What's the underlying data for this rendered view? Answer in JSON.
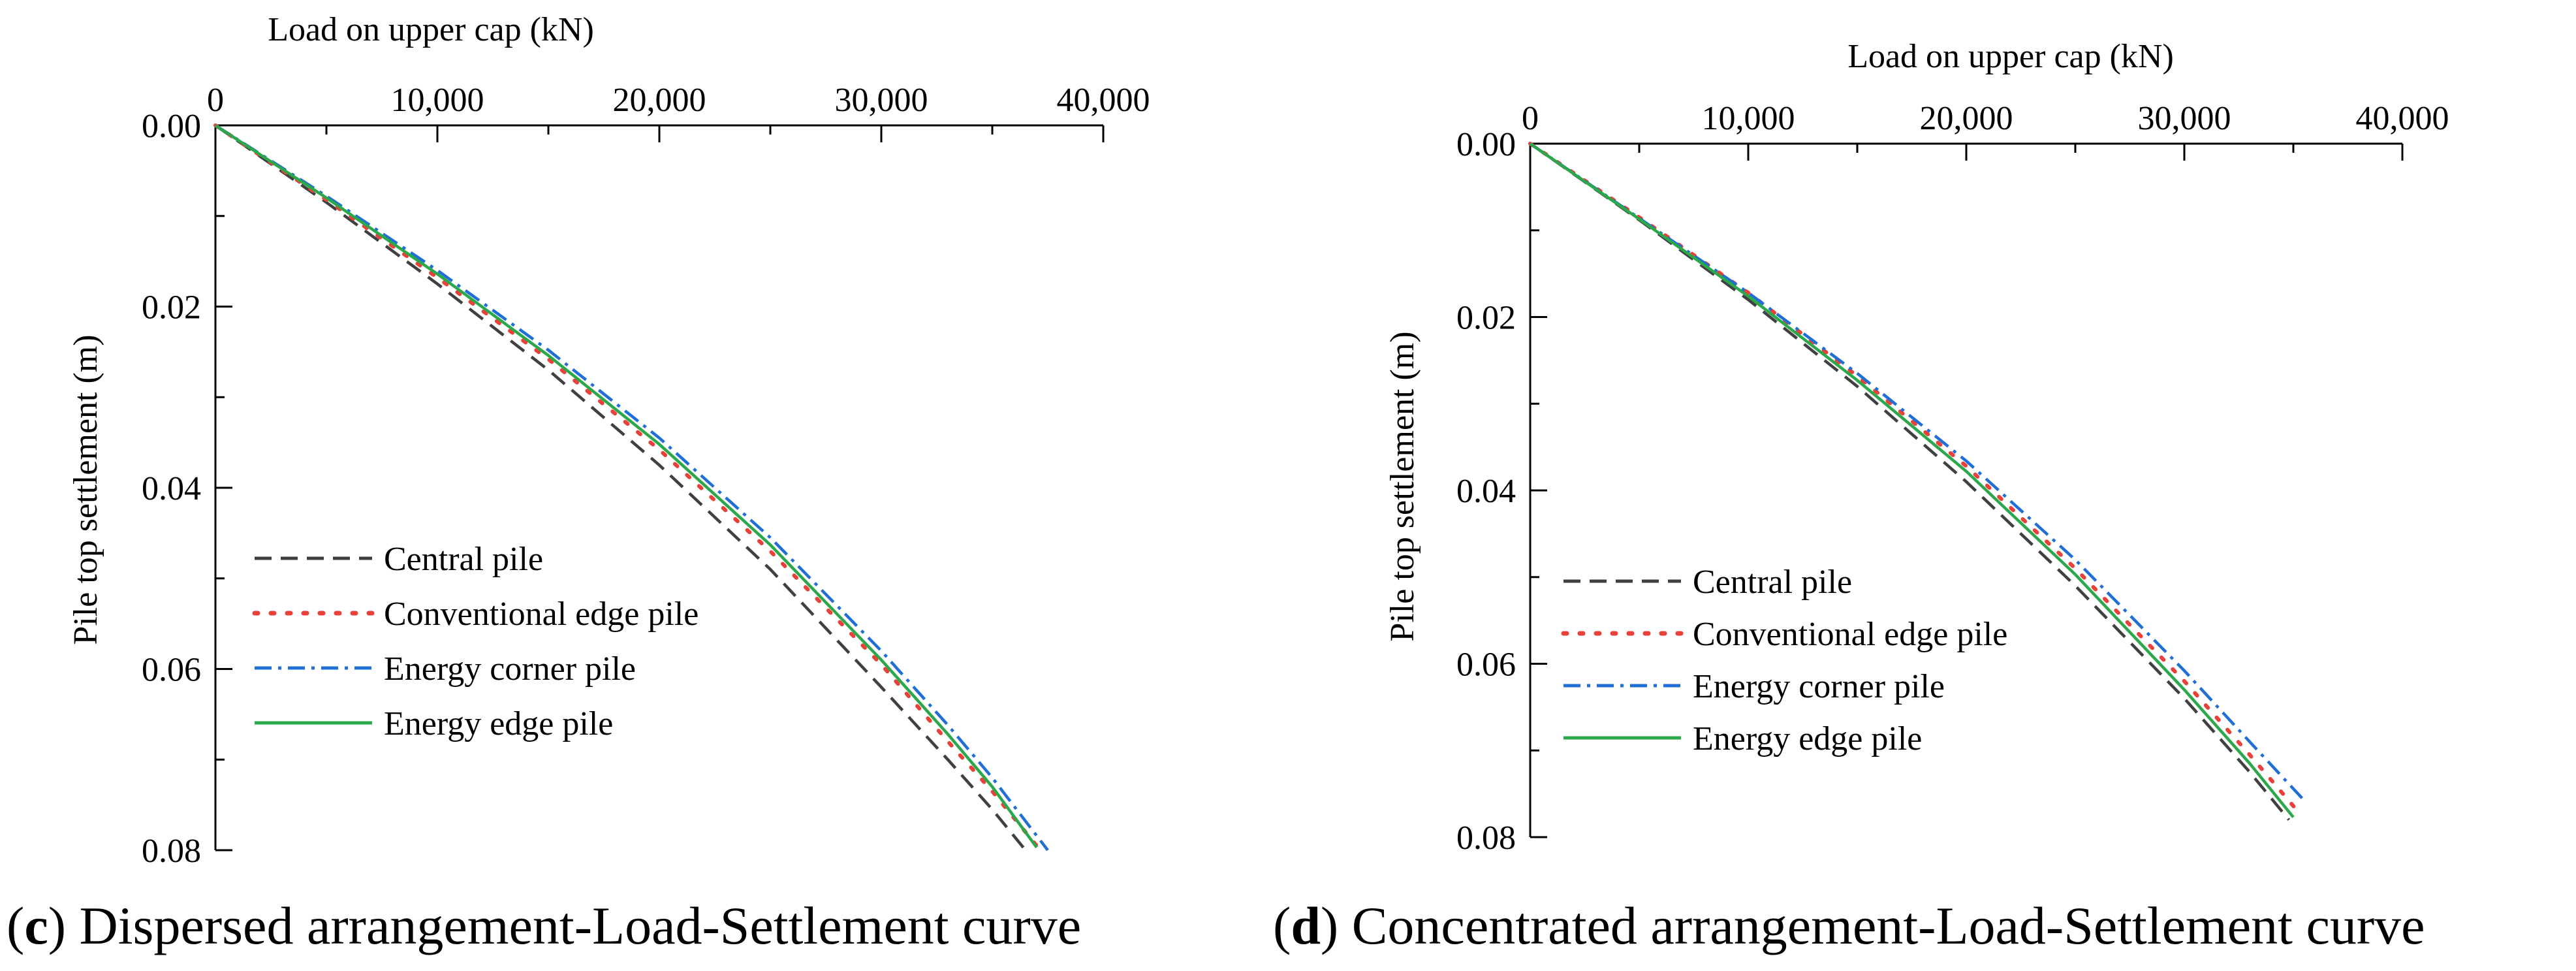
{
  "chart_data": [
    {
      "type": "line",
      "panel_label": "c",
      "caption": "Dispersed arrangement-Load-Settlement curve",
      "xlabel": "Load on upper cap (kN)",
      "ylabel": "Pile top settlement (m)",
      "xlim": [
        0,
        40000
      ],
      "ylim": [
        0,
        0.08
      ],
      "y_inverted": true,
      "x_axis_position": "top",
      "x_ticks": [
        0,
        10000,
        20000,
        30000,
        40000
      ],
      "x_tick_labels": [
        "0",
        "10,000",
        "20,000",
        "30,000",
        "40,000"
      ],
      "y_ticks": [
        0,
        0.02,
        0.04,
        0.06,
        0.08
      ],
      "y_tick_labels": [
        "0.00",
        "0.02",
        "0.04",
        "0.06",
        "0.08"
      ],
      "grid": false,
      "legend_position": "lower-left",
      "series": [
        {
          "name": "Central pile",
          "color": "#404040",
          "style": "dash",
          "x": [
            0,
            5000,
            10000,
            15000,
            20000,
            25000,
            30000,
            33000,
            35000,
            36500
          ],
          "y": [
            0,
            0.0085,
            0.0175,
            0.027,
            0.0375,
            0.049,
            0.062,
            0.07,
            0.0755,
            0.08
          ]
        },
        {
          "name": "Conventional edge pile",
          "color": "#e8413a",
          "style": "dot",
          "x": [
            0,
            5000,
            10000,
            15000,
            20000,
            25000,
            30000,
            33000,
            35000,
            37000
          ],
          "y": [
            0,
            0.0082,
            0.0168,
            0.0258,
            0.0358,
            0.047,
            0.0595,
            0.068,
            0.0735,
            0.0795
          ]
        },
        {
          "name": "Energy corner pile",
          "color": "#1f6fd6",
          "style": "dashdot",
          "x": [
            0,
            5000,
            10000,
            15000,
            20000,
            25000,
            30000,
            33000,
            35000,
            37500
          ],
          "y": [
            0,
            0.0078,
            0.016,
            0.0248,
            0.0345,
            0.0455,
            0.058,
            0.0662,
            0.072,
            0.08
          ]
        },
        {
          "name": "Energy edge pile",
          "color": "#2aa84a",
          "style": "solid",
          "x": [
            0,
            5000,
            10000,
            15000,
            20000,
            25000,
            30000,
            33000,
            35000,
            37000
          ],
          "y": [
            0,
            0.008,
            0.0164,
            0.0254,
            0.0352,
            0.0463,
            0.059,
            0.0672,
            0.073,
            0.0797
          ]
        }
      ]
    },
    {
      "type": "line",
      "panel_label": "d",
      "caption": "Concentrated arrangement-Load-Settlement curve",
      "xlabel": "Load on upper cap (kN)",
      "ylabel": "Pile top settlement (m)",
      "xlim": [
        0,
        40000
      ],
      "ylim": [
        0,
        0.08
      ],
      "y_inverted": true,
      "x_axis_position": "top",
      "x_ticks": [
        0,
        10000,
        20000,
        30000,
        40000
      ],
      "x_tick_labels": [
        "0",
        "10,000",
        "20,000",
        "30,000",
        "40,000"
      ],
      "y_ticks": [
        0,
        0.02,
        0.04,
        0.06,
        0.08
      ],
      "y_tick_labels": [
        "0.00",
        "0.02",
        "0.04",
        "0.06",
        "0.08"
      ],
      "grid": false,
      "legend_position": "lower-left",
      "series": [
        {
          "name": "Central pile",
          "color": "#404040",
          "style": "dash",
          "x": [
            0,
            5000,
            10000,
            15000,
            20000,
            25000,
            30000,
            33000,
            34800
          ],
          "y": [
            0,
            0.0088,
            0.018,
            0.028,
            0.039,
            0.051,
            0.064,
            0.0725,
            0.078
          ]
        },
        {
          "name": "Conventional edge pile",
          "color": "#e8413a",
          "style": "dot",
          "x": [
            0,
            5000,
            10000,
            15000,
            20000,
            25000,
            30000,
            33000,
            35200
          ],
          "y": [
            0,
            0.0085,
            0.0172,
            0.0268,
            0.0372,
            0.049,
            0.062,
            0.0705,
            0.077
          ]
        },
        {
          "name": "Energy corner pile",
          "color": "#1f6fd6",
          "style": "dashdot",
          "x": [
            0,
            5000,
            10000,
            15000,
            20000,
            25000,
            30000,
            33000,
            35400
          ],
          "y": [
            0,
            0.0086,
            0.0172,
            0.0265,
            0.0366,
            0.048,
            0.0608,
            0.069,
            0.0755
          ]
        },
        {
          "name": "Energy edge pile",
          "color": "#2aa84a",
          "style": "solid",
          "x": [
            0,
            5000,
            10000,
            15000,
            20000,
            25000,
            30000,
            33000,
            35000
          ],
          "y": [
            0,
            0.0087,
            0.0176,
            0.0273,
            0.0378,
            0.0497,
            0.063,
            0.0715,
            0.0777
          ]
        }
      ]
    }
  ]
}
